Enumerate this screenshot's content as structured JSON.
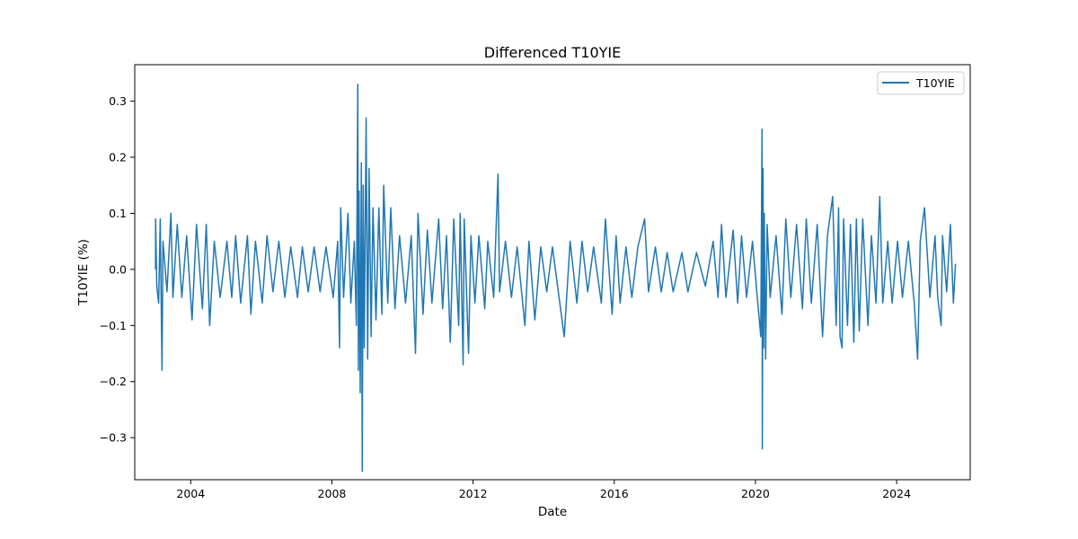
{
  "chart_data": {
    "type": "line",
    "title": "Differenced T10YIE",
    "xlabel": "Date",
    "ylabel": "T10YIE (%)",
    "xlim": [
      "2002-06-01",
      "2026-01-31"
    ],
    "ylim": [
      -0.375,
      0.365
    ],
    "x_ticks": [
      "2004",
      "2008",
      "2012",
      "2016",
      "2020",
      "2024"
    ],
    "y_ticks": [
      "0.3",
      "0.2",
      "0.1",
      "0.0",
      "−0.1",
      "−0.2",
      "−0.3"
    ],
    "y_tick_values": [
      0.3,
      0.2,
      0.1,
      0.0,
      -0.1,
      -0.2,
      -0.3
    ],
    "grid": false,
    "legend_position": "top-right",
    "series": [
      {
        "name": "T10YIE",
        "color": "#1f77b4",
        "points": [
          [
            "2003-01-02",
            0.0
          ],
          [
            "2003-01-03",
            0.09
          ],
          [
            "2003-01-15",
            -0.03
          ],
          [
            "2003-02-03",
            -0.06
          ],
          [
            "2003-02-20",
            0.09
          ],
          [
            "2003-03-10",
            -0.18
          ],
          [
            "2003-03-20",
            0.05
          ],
          [
            "2003-05-01",
            -0.04
          ],
          [
            "2003-06-10",
            0.1
          ],
          [
            "2003-07-01",
            -0.05
          ],
          [
            "2003-08-15",
            0.08
          ],
          [
            "2003-10-01",
            -0.05
          ],
          [
            "2003-11-20",
            0.06
          ],
          [
            "2004-01-15",
            -0.09
          ],
          [
            "2004-03-01",
            0.08
          ],
          [
            "2004-05-01",
            -0.07
          ],
          [
            "2004-06-10",
            0.08
          ],
          [
            "2004-07-15",
            -0.1
          ],
          [
            "2004-09-01",
            0.05
          ],
          [
            "2004-11-01",
            -0.05
          ],
          [
            "2005-01-10",
            0.05
          ],
          [
            "2005-03-01",
            -0.05
          ],
          [
            "2005-04-10",
            0.06
          ],
          [
            "2005-06-01",
            -0.06
          ],
          [
            "2005-08-10",
            0.06
          ],
          [
            "2005-09-15",
            -0.08
          ],
          [
            "2005-11-01",
            0.05
          ],
          [
            "2006-01-10",
            -0.06
          ],
          [
            "2006-03-01",
            0.06
          ],
          [
            "2006-05-01",
            -0.04
          ],
          [
            "2006-07-01",
            0.05
          ],
          [
            "2006-09-01",
            -0.05
          ],
          [
            "2006-11-01",
            0.04
          ],
          [
            "2007-01-10",
            -0.05
          ],
          [
            "2007-03-01",
            0.04
          ],
          [
            "2007-05-01",
            -0.04
          ],
          [
            "2007-07-01",
            0.04
          ],
          [
            "2007-09-01",
            -0.04
          ],
          [
            "2007-11-01",
            0.04
          ],
          [
            "2008-01-15",
            -0.05
          ],
          [
            "2008-03-01",
            0.05
          ],
          [
            "2008-03-20",
            -0.14
          ],
          [
            "2008-04-01",
            0.11
          ],
          [
            "2008-05-01",
            -0.05
          ],
          [
            "2008-06-15",
            0.1
          ],
          [
            "2008-07-15",
            -0.06
          ],
          [
            "2008-08-20",
            0.05
          ],
          [
            "2008-09-10",
            -0.1
          ],
          [
            "2008-09-25",
            0.33
          ],
          [
            "2008-10-01",
            -0.18
          ],
          [
            "2008-10-08",
            0.14
          ],
          [
            "2008-10-20",
            -0.22
          ],
          [
            "2008-11-01",
            0.19
          ],
          [
            "2008-11-10",
            -0.36
          ],
          [
            "2008-11-20",
            0.15
          ],
          [
            "2008-12-01",
            -0.14
          ],
          [
            "2008-12-20",
            0.27
          ],
          [
            "2009-01-05",
            -0.16
          ],
          [
            "2009-01-20",
            0.18
          ],
          [
            "2009-02-10",
            -0.12
          ],
          [
            "2009-03-01",
            0.11
          ],
          [
            "2009-04-01",
            -0.09
          ],
          [
            "2009-05-01",
            0.11
          ],
          [
            "2009-06-01",
            -0.08
          ],
          [
            "2009-06-20",
            0.15
          ],
          [
            "2009-08-01",
            -0.06
          ],
          [
            "2009-09-01",
            0.11
          ],
          [
            "2009-10-15",
            -0.07
          ],
          [
            "2009-12-01",
            0.06
          ],
          [
            "2010-02-01",
            -0.06
          ],
          [
            "2010-04-01",
            0.06
          ],
          [
            "2010-05-15",
            -0.15
          ],
          [
            "2010-06-10",
            0.1
          ],
          [
            "2010-08-01",
            -0.08
          ],
          [
            "2010-09-15",
            0.07
          ],
          [
            "2010-11-01",
            -0.06
          ],
          [
            "2011-01-10",
            0.09
          ],
          [
            "2011-02-20",
            -0.07
          ],
          [
            "2011-04-01",
            0.06
          ],
          [
            "2011-05-10",
            -0.13
          ],
          [
            "2011-06-15",
            0.09
          ],
          [
            "2011-08-05",
            -0.1
          ],
          [
            "2011-08-20",
            0.1
          ],
          [
            "2011-09-20",
            -0.17
          ],
          [
            "2011-10-01",
            0.09
          ],
          [
            "2011-11-15",
            -0.15
          ],
          [
            "2011-12-10",
            0.06
          ],
          [
            "2012-01-20",
            -0.06
          ],
          [
            "2012-03-01",
            0.06
          ],
          [
            "2012-05-01",
            -0.07
          ],
          [
            "2012-06-01",
            0.05
          ],
          [
            "2012-08-01",
            -0.05
          ],
          [
            "2012-09-15",
            0.17
          ],
          [
            "2012-10-01",
            -0.04
          ],
          [
            "2012-12-01",
            0.05
          ],
          [
            "2013-02-01",
            -0.05
          ],
          [
            "2013-04-01",
            0.04
          ],
          [
            "2013-06-20",
            -0.1
          ],
          [
            "2013-08-01",
            0.05
          ],
          [
            "2013-10-01",
            -0.09
          ],
          [
            "2013-12-01",
            0.04
          ],
          [
            "2014-02-01",
            -0.04
          ],
          [
            "2014-04-01",
            0.04
          ],
          [
            "2014-06-01",
            -0.04
          ],
          [
            "2014-08-01",
            -0.12
          ],
          [
            "2014-10-01",
            0.05
          ],
          [
            "2014-12-10",
            -0.06
          ],
          [
            "2015-02-01",
            0.05
          ],
          [
            "2015-04-01",
            -0.04
          ],
          [
            "2015-06-01",
            0.04
          ],
          [
            "2015-08-20",
            -0.06
          ],
          [
            "2015-10-01",
            0.09
          ],
          [
            "2015-12-10",
            -0.08
          ],
          [
            "2016-01-20",
            0.06
          ],
          [
            "2016-03-01",
            -0.06
          ],
          [
            "2016-05-01",
            0.04
          ],
          [
            "2016-07-01",
            -0.05
          ],
          [
            "2016-09-01",
            0.04
          ],
          [
            "2016-11-10",
            0.09
          ],
          [
            "2016-12-20",
            -0.04
          ],
          [
            "2017-03-01",
            0.04
          ],
          [
            "2017-05-01",
            -0.04
          ],
          [
            "2017-07-01",
            0.03
          ],
          [
            "2017-09-01",
            -0.04
          ],
          [
            "2017-12-01",
            0.03
          ],
          [
            "2018-02-01",
            -0.04
          ],
          [
            "2018-05-01",
            0.03
          ],
          [
            "2018-08-01",
            -0.03
          ],
          [
            "2018-10-20",
            0.05
          ],
          [
            "2018-12-10",
            -0.05
          ],
          [
            "2019-01-15",
            0.08
          ],
          [
            "2019-03-01",
            -0.05
          ],
          [
            "2019-05-15",
            0.07
          ],
          [
            "2019-07-01",
            -0.06
          ],
          [
            "2019-08-10",
            0.06
          ],
          [
            "2019-10-01",
            -0.05
          ],
          [
            "2019-12-01",
            0.05
          ],
          [
            "2020-01-20",
            -0.05
          ],
          [
            "2020-02-25",
            -0.12
          ],
          [
            "2020-03-09",
            0.25
          ],
          [
            "2020-03-12",
            -0.32
          ],
          [
            "2020-03-19",
            0.18
          ],
          [
            "2020-03-25",
            -0.14
          ],
          [
            "2020-04-01",
            0.1
          ],
          [
            "2020-04-15",
            -0.16
          ],
          [
            "2020-05-01",
            0.08
          ],
          [
            "2020-06-01",
            -0.05
          ],
          [
            "2020-08-01",
            0.06
          ],
          [
            "2020-10-01",
            -0.08
          ],
          [
            "2020-11-10",
            0.09
          ],
          [
            "2021-01-01",
            -0.05
          ],
          [
            "2021-03-01",
            0.08
          ],
          [
            "2021-05-01",
            -0.07
          ],
          [
            "2021-06-10",
            0.09
          ],
          [
            "2021-08-01",
            -0.06
          ],
          [
            "2021-10-01",
            0.08
          ],
          [
            "2021-11-25",
            -0.12
          ],
          [
            "2022-01-15",
            0.06
          ],
          [
            "2022-03-10",
            0.13
          ],
          [
            "2022-04-15",
            -0.1
          ],
          [
            "2022-05-10",
            0.11
          ],
          [
            "2022-05-25",
            -0.12
          ],
          [
            "2022-06-15",
            -0.14
          ],
          [
            "2022-07-01",
            0.09
          ],
          [
            "2022-08-10",
            -0.1
          ],
          [
            "2022-09-10",
            0.08
          ],
          [
            "2022-10-15",
            -0.13
          ],
          [
            "2022-11-10",
            0.09
          ],
          [
            "2022-12-10",
            -0.11
          ],
          [
            "2023-01-15",
            0.09
          ],
          [
            "2023-03-10",
            -0.1
          ],
          [
            "2023-04-15",
            0.06
          ],
          [
            "2023-06-01",
            -0.06
          ],
          [
            "2023-07-10",
            0.13
          ],
          [
            "2023-08-10",
            -0.06
          ],
          [
            "2023-10-01",
            0.05
          ],
          [
            "2023-11-15",
            -0.06
          ],
          [
            "2024-01-10",
            0.05
          ],
          [
            "2024-03-01",
            -0.05
          ],
          [
            "2024-05-01",
            0.05
          ],
          [
            "2024-07-01",
            -0.06
          ],
          [
            "2024-08-05",
            -0.16
          ],
          [
            "2024-09-01",
            0.05
          ],
          [
            "2024-10-15",
            0.11
          ],
          [
            "2024-12-10",
            -0.05
          ],
          [
            "2025-02-01",
            0.06
          ],
          [
            "2025-03-01",
            -0.05
          ],
          [
            "2025-04-05",
            -0.1
          ],
          [
            "2025-04-20",
            0.06
          ],
          [
            "2025-06-01",
            -0.04
          ],
          [
            "2025-07-10",
            0.08
          ],
          [
            "2025-08-10",
            -0.06
          ],
          [
            "2025-09-01",
            0.01
          ]
        ]
      }
    ]
  }
}
